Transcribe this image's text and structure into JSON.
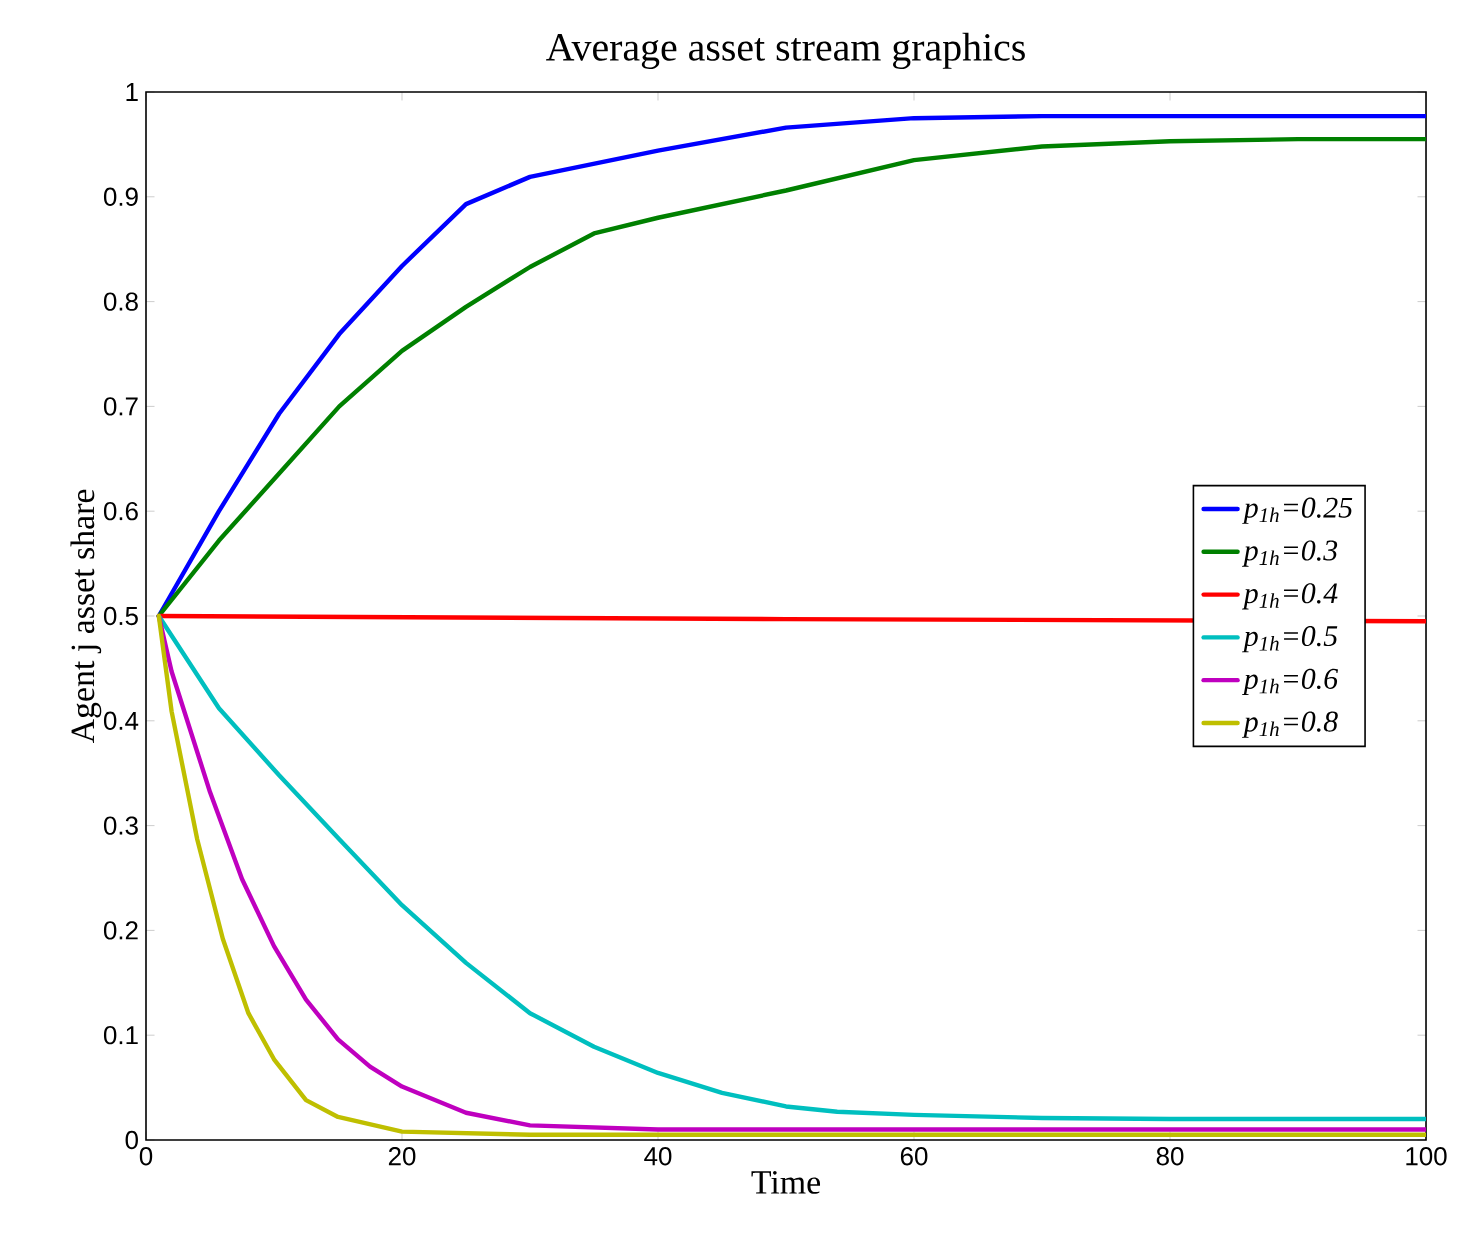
{
  "chart_data": {
    "type": "line",
    "title": "Average asset stream graphics",
    "xlabel": "Time",
    "ylabel": "Agent j asset share",
    "xlim": [
      0,
      100
    ],
    "ylim": [
      0,
      1
    ],
    "xticks": [
      0,
      20,
      40,
      60,
      80,
      100
    ],
    "yticks": [
      0,
      0.1,
      0.2,
      0.3,
      0.4,
      0.5,
      0.6,
      0.7,
      0.8,
      0.9,
      1
    ],
    "legend": "right",
    "line_style": "solid",
    "marker": "none",
    "grid": false,
    "series": [
      {
        "name": "p$_{1h}$=0.25",
        "color": "#0000ff",
        "x": [
          1,
          5.7,
          10.4,
          15.1,
          20,
          25,
          30,
          40,
          50,
          60,
          70,
          80,
          100
        ],
        "values": [
          0.5,
          0.6,
          0.693,
          0.769,
          0.834,
          0.893,
          0.919,
          0.944,
          0.966,
          0.975,
          0.977,
          0.977,
          0.977
        ]
      },
      {
        "name": "p$_{1h}$=0.3",
        "color": "#008000",
        "x": [
          1,
          5.7,
          10.4,
          15.1,
          20,
          25,
          30,
          35,
          40,
          50,
          60,
          70,
          80,
          90,
          100
        ],
        "values": [
          0.5,
          0.572,
          0.636,
          0.7,
          0.753,
          0.795,
          0.833,
          0.865,
          0.88,
          0.906,
          0.935,
          0.948,
          0.953,
          0.955,
          0.955
        ]
      },
      {
        "name": "p$_{1h}$=0.4",
        "color": "#ff0000",
        "x": [
          1,
          50,
          100
        ],
        "values": [
          0.5,
          0.497,
          0.495
        ]
      },
      {
        "name": "p$_{1h}$=0.5",
        "color": "#00bfbf",
        "x": [
          1,
          5.7,
          10.4,
          15.1,
          20,
          25,
          30,
          35,
          40,
          45,
          50,
          54,
          60,
          70,
          80,
          100
        ],
        "values": [
          0.5,
          0.412,
          0.348,
          0.287,
          0.224,
          0.169,
          0.121,
          0.089,
          0.064,
          0.045,
          0.032,
          0.027,
          0.024,
          0.021,
          0.02,
          0.02
        ]
      },
      {
        "name": "p$_{1h}$=0.6",
        "color": "#bf00bf",
        "x": [
          1,
          2,
          5,
          7.5,
          10,
          12.5,
          15,
          17.5,
          20,
          25,
          30,
          40,
          100
        ],
        "values": [
          0.5,
          0.447,
          0.332,
          0.249,
          0.185,
          0.134,
          0.096,
          0.07,
          0.051,
          0.026,
          0.014,
          0.01,
          0.01
        ]
      },
      {
        "name": "p$_{1h}$=0.8",
        "color": "#bfbf00",
        "x": [
          1,
          2,
          4,
          6,
          8,
          10,
          12.5,
          15,
          20,
          30,
          100
        ],
        "values": [
          0.5,
          0.409,
          0.287,
          0.192,
          0.121,
          0.077,
          0.038,
          0.022,
          0.008,
          0.005,
          0.005
        ]
      }
    ]
  }
}
